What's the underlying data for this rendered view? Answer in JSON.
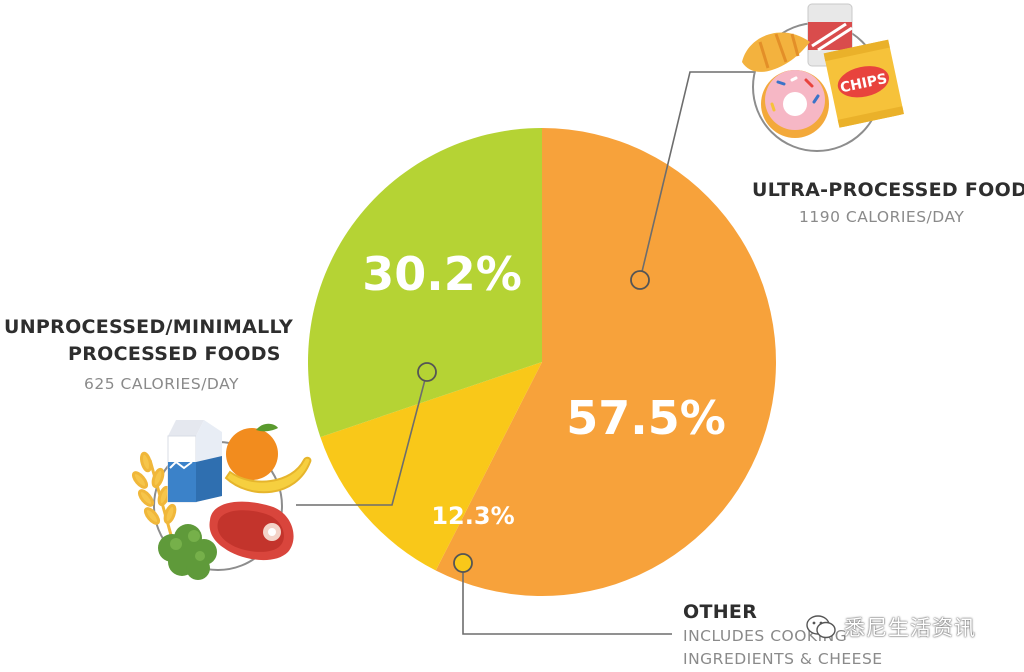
{
  "chart_data": {
    "type": "pie",
    "slices": [
      {
        "label": "ULTRA-PROCESSED FOODS",
        "value": 57.5,
        "value_label": "57.5%",
        "detail": "1190 CALORIES/DAY",
        "color": "#F7A23B"
      },
      {
        "label": "OTHER",
        "value": 12.3,
        "value_label": "12.3%",
        "detail": "INCLUDES COOKING INGREDIENTS & CHEESE",
        "color": "#F9C819"
      },
      {
        "label": "UNPROCESSED/MINIMALLY PROCESSED FOODS",
        "value": 30.2,
        "value_label": "30.2%",
        "detail": "625 CALORIES/DAY",
        "color": "#B5D334"
      }
    ]
  },
  "labels": {
    "ultra": {
      "title": "ULTRA-PROCESSED FOODS",
      "sub": "1190 CALORIES/DAY"
    },
    "unprocessed": {
      "title_line1": "UNPROCESSED/MINIMALLY",
      "title_line2": "PROCESSED FOODS",
      "sub": "625 CALORIES/DAY"
    },
    "other": {
      "title": "OTHER",
      "sub_line1": "INCLUDES COOKING",
      "sub_line2": "INGREDIENTS & CHEESE"
    }
  },
  "icons": {
    "ultra": "chips-donut-soda-croissant-icon",
    "unprocessed": "milk-orange-banana-steak-wheat-broccoli-icon",
    "chips_text": "CHIPS"
  },
  "watermark": {
    "text": "悉尼生活资讯"
  }
}
